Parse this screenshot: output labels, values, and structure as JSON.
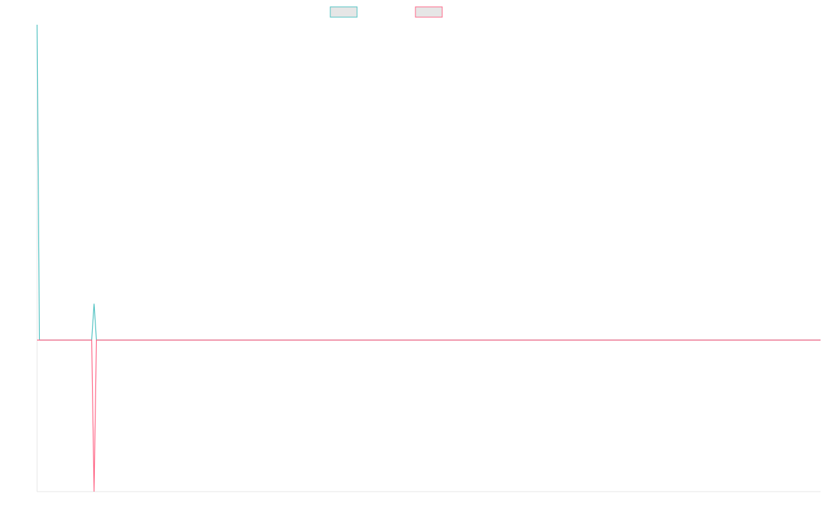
{
  "chart_data": {
    "type": "line",
    "x": [
      0,
      1,
      23,
      24,
      25,
      330
    ],
    "xlim": [
      0,
      330
    ],
    "ylim": [
      -1,
      2.08
    ],
    "series": [
      {
        "color": "#4bc0c0",
        "values": [
          2.08,
          0,
          0,
          0.24,
          0,
          0
        ]
      },
      {
        "color": "#ff6384",
        "values": [
          0,
          0,
          0,
          -1,
          0,
          0
        ]
      }
    ]
  }
}
